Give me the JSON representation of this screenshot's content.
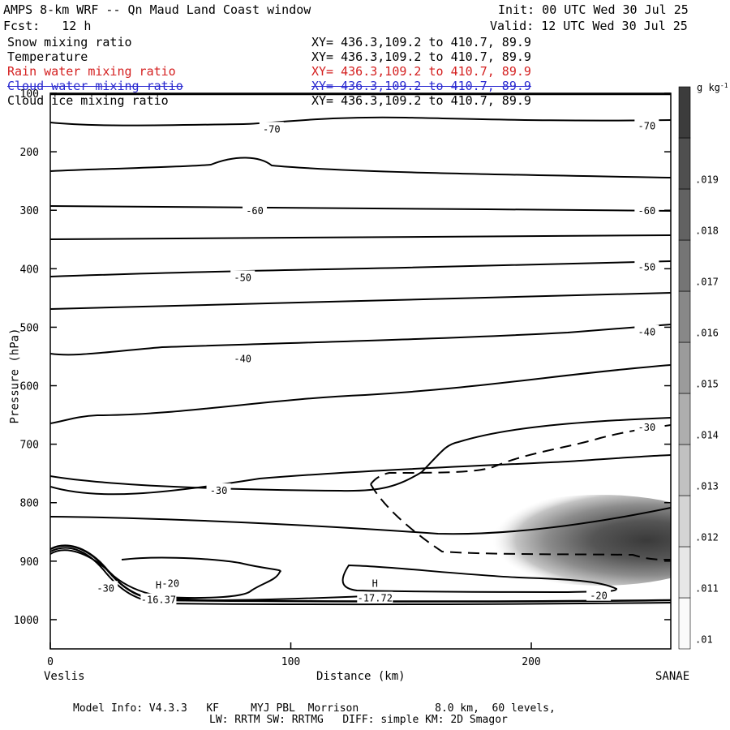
{
  "header": {
    "title_left": "AMPS 8-km WRF -- Qn Maud Land Coast window",
    "init": "Init: 00 UTC Wed 30 Jul 25",
    "fcst": "Fcst:   12 h",
    "valid": "Valid: 12 UTC Wed 30 Jul 25"
  },
  "fields": [
    {
      "name": "Snow mixing ratio",
      "xy": "XY= 436.3,109.2 to 410.7, 89.9",
      "color": "#000000"
    },
    {
      "name": "Temperature",
      "xy": "XY= 436.3,109.2 to 410.7, 89.9",
      "color": "#000000"
    },
    {
      "name": "Rain water mixing ratio",
      "xy": "XY= 436.3,109.2 to 410.7, 89.9",
      "color": "#d42020"
    },
    {
      "name": "Cloud water mixing ratio",
      "xy": "XY= 436.3,109.2 to 410.7, 89.9",
      "color": "#2a2ad0"
    },
    {
      "name": "Cloud ice mixing ratio",
      "xy": "XY= 436.3,109.2 to 410.7, 89.9",
      "color": "#000000"
    }
  ],
  "chart_data": {
    "type": "cross-section contour",
    "xlabel": "Distance (km)",
    "ylabel": "Pressure (hPa)",
    "xlim": [
      0,
      258
    ],
    "ylim": [
      1050,
      100
    ],
    "x_ticks": [
      0,
      100,
      200
    ],
    "y_ticks": [
      100,
      200,
      300,
      400,
      500,
      600,
      700,
      800,
      900,
      1000
    ],
    "endpoints": {
      "left": "Veslis",
      "right": "SANAE"
    },
    "colorbar": {
      "unit": "g kg",
      "unit_exp": "-1",
      "labels": [
        ".01",
        ".011",
        ".012",
        ".013",
        ".014",
        ".015",
        ".016",
        ".017",
        ".018",
        ".019"
      ],
      "min": 0.0095,
      "max": 0.02
    },
    "temperature_labels": [
      {
        "text": "-70",
        "x": 92,
        "p": 160
      },
      {
        "text": "-70",
        "x": 248,
        "p": 155
      },
      {
        "text": "-60",
        "x": 85,
        "p": 300
      },
      {
        "text": "-60",
        "x": 248,
        "p": 300
      },
      {
        "text": "-50",
        "x": 80,
        "p": 414
      },
      {
        "text": "-50",
        "x": 248,
        "p": 396
      },
      {
        "text": "-40",
        "x": 80,
        "p": 553
      },
      {
        "text": "-40",
        "x": 248,
        "p": 507
      },
      {
        "text": "-30",
        "x": 70,
        "p": 778
      },
      {
        "text": "-30",
        "x": 248,
        "p": 670
      },
      {
        "text": "-30",
        "x": 23,
        "p": 945
      },
      {
        "text": "-20",
        "x": 50,
        "p": 937
      },
      {
        "text": "-20",
        "x": 228,
        "p": 958
      }
    ],
    "highs": [
      {
        "symbol": "H",
        "value": "-16.37",
        "x": 45,
        "p": 958
      },
      {
        "symbol": "H",
        "value": "-17.72",
        "x": 135,
        "p": 955
      }
    ]
  },
  "footer": {
    "line1": "Model Info: V4.3.3   KF     MYJ PBL  Morrison            8.0 km,  60 levels,",
    "line2": "LW: RRTM SW: RRTMG   DIFF: simple KM: 2D Smagor"
  }
}
